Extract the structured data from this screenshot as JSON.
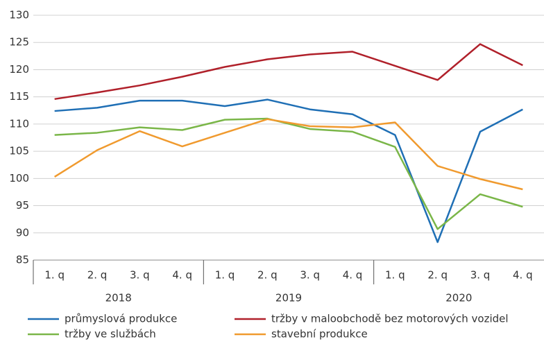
{
  "chart_data": {
    "type": "line",
    "categories": [
      "1. q",
      "2. q",
      "3. q",
      "4. q",
      "1. q",
      "2. q",
      "3. q",
      "4. q",
      "1. q",
      "2. q",
      "3. q",
      "4. q"
    ],
    "groups": [
      "2018",
      "2019",
      "2020"
    ],
    "series": [
      {
        "name": "průmyslová produkce",
        "color": "#1f6fb5",
        "values": [
          112.4,
          113,
          114.3,
          114.3,
          113.3,
          114.5,
          112.7,
          111.8,
          108,
          88.3,
          108.6,
          112.7
        ]
      },
      {
        "name": "tržby v maloobchodě bez motorových vozidel",
        "color": "#b0202a",
        "values": [
          114.6,
          115.8,
          117.1,
          118.7,
          120.5,
          121.9,
          122.8,
          123.3,
          120.7,
          118.1,
          124.7,
          120.8
        ]
      },
      {
        "name": "tržby ve službách",
        "color": "#7ab648",
        "values": [
          108,
          108.4,
          109.4,
          108.9,
          110.8,
          111,
          109.1,
          108.6,
          105.8,
          90.7,
          97.1,
          94.8
        ]
      },
      {
        "name": "stavební produkce",
        "color": "#f09a2e",
        "values": [
          100.3,
          105.2,
          108.7,
          105.9,
          108.4,
          110.9,
          109.6,
          109.4,
          110.3,
          102.3,
          99.9,
          98
        ]
      }
    ],
    "ylim": [
      85,
      130
    ],
    "yticks": [
      85,
      90,
      95,
      100,
      105,
      110,
      115,
      120,
      125,
      130
    ],
    "grid": true
  }
}
